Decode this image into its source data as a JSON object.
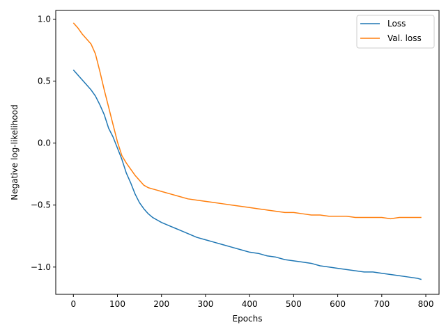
{
  "chart_data": {
    "type": "line",
    "title": "",
    "xlabel": "Epochs",
    "ylabel": "Negative log-likelihood",
    "xlim": [
      -40,
      830
    ],
    "ylim": [
      -1.22,
      1.07
    ],
    "xticks": [
      0,
      100,
      200,
      300,
      400,
      500,
      600,
      700,
      800
    ],
    "yticks": [
      -1.0,
      -0.5,
      0.0,
      0.5,
      1.0
    ],
    "xtick_labels": [
      "0",
      "100",
      "200",
      "300",
      "400",
      "500",
      "600",
      "700",
      "800"
    ],
    "ytick_labels": [
      "−1.0",
      "−0.5",
      "0.0",
      "0.5",
      "1.0"
    ],
    "grid": false,
    "legend_position": "top-right",
    "series": [
      {
        "name": "Loss",
        "color": "#1f77b4",
        "x": [
          0,
          10,
          20,
          30,
          40,
          50,
          60,
          70,
          80,
          90,
          100,
          110,
          120,
          130,
          140,
          150,
          160,
          170,
          180,
          190,
          200,
          220,
          240,
          260,
          280,
          300,
          320,
          340,
          360,
          380,
          400,
          420,
          440,
          460,
          480,
          500,
          520,
          540,
          560,
          580,
          600,
          620,
          640,
          660,
          680,
          700,
          720,
          740,
          760,
          780,
          790
        ],
        "y": [
          0.59,
          0.55,
          0.51,
          0.47,
          0.43,
          0.38,
          0.31,
          0.23,
          0.12,
          0.05,
          -0.04,
          -0.13,
          -0.24,
          -0.32,
          -0.41,
          -0.48,
          -0.53,
          -0.57,
          -0.6,
          -0.62,
          -0.64,
          -0.67,
          -0.7,
          -0.73,
          -0.76,
          -0.78,
          -0.8,
          -0.82,
          -0.84,
          -0.86,
          -0.88,
          -0.89,
          -0.91,
          -0.92,
          -0.94,
          -0.95,
          -0.96,
          -0.97,
          -0.99,
          -1.0,
          -1.01,
          -1.02,
          -1.03,
          -1.04,
          -1.04,
          -1.05,
          -1.06,
          -1.07,
          -1.08,
          -1.09,
          -1.1
        ]
      },
      {
        "name": "Val. loss",
        "color": "#ff7f0e",
        "x": [
          0,
          10,
          20,
          30,
          40,
          50,
          60,
          70,
          80,
          90,
          100,
          110,
          120,
          130,
          140,
          150,
          160,
          170,
          180,
          190,
          200,
          220,
          240,
          260,
          280,
          300,
          320,
          340,
          360,
          380,
          400,
          420,
          440,
          460,
          480,
          500,
          520,
          540,
          560,
          580,
          600,
          620,
          640,
          660,
          680,
          700,
          720,
          740,
          760,
          780,
          790
        ],
        "y": [
          0.97,
          0.93,
          0.88,
          0.84,
          0.8,
          0.72,
          0.58,
          0.43,
          0.29,
          0.15,
          0.01,
          -0.1,
          -0.16,
          -0.21,
          -0.26,
          -0.3,
          -0.34,
          -0.36,
          -0.37,
          -0.38,
          -0.39,
          -0.41,
          -0.43,
          -0.45,
          -0.46,
          -0.47,
          -0.48,
          -0.49,
          -0.5,
          -0.51,
          -0.52,
          -0.53,
          -0.54,
          -0.55,
          -0.56,
          -0.56,
          -0.57,
          -0.58,
          -0.58,
          -0.59,
          -0.59,
          -0.59,
          -0.6,
          -0.6,
          -0.6,
          -0.6,
          -0.61,
          -0.6,
          -0.6,
          -0.6,
          -0.6
        ]
      }
    ]
  }
}
